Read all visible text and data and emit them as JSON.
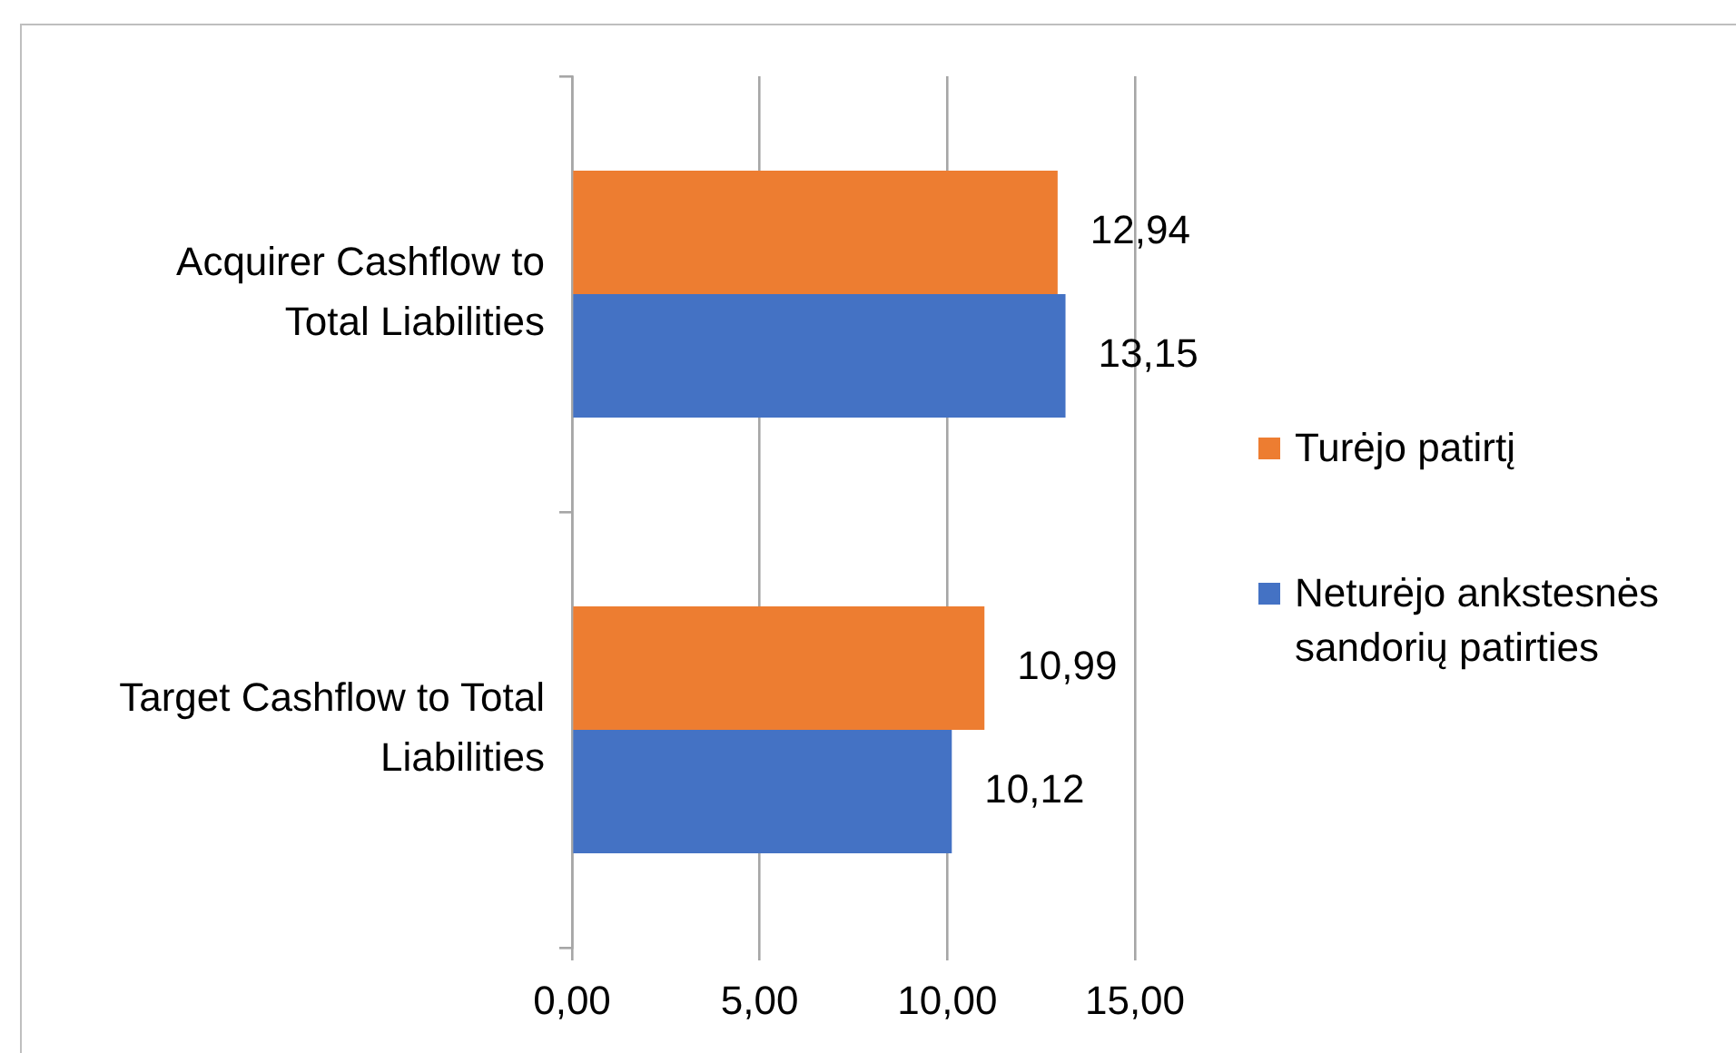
{
  "chart_data": {
    "type": "bar",
    "orientation": "horizontal",
    "categories": [
      "Acquirer Cashflow to Total Liabilities",
      "Target Cashflow to Total Liabilities"
    ],
    "series": [
      {
        "name": "Turėjo patirtį",
        "color": "#ed7d31",
        "values": [
          12.94,
          10.99
        ],
        "value_labels": [
          "12,94",
          "10,99"
        ]
      },
      {
        "name": "Neturėjo ankstesnės sandorių patirties",
        "color": "#4472c4",
        "values": [
          13.15,
          10.12
        ],
        "value_labels": [
          "13,15",
          "10,12"
        ]
      }
    ],
    "xlim": [
      0,
      15
    ],
    "xticks": [
      {
        "value": 0,
        "label": "0,00"
      },
      {
        "value": 5,
        "label": "5,00"
      },
      {
        "value": 10,
        "label": "10,00"
      },
      {
        "value": 15,
        "label": "15,00"
      }
    ],
    "grid": "x",
    "legend": "right"
  }
}
